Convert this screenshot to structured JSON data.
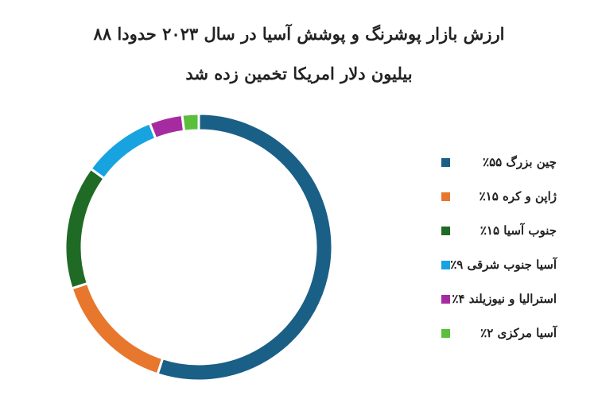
{
  "chart_data": {
    "type": "donut",
    "title": "ارزش بازار پوشرنگ و پوشش  آسیا  در سال ۲۰۲۳ حدودا ۸۸  بیلیون دلار امریکا تخمین زده شد",
    "categories": [
      "چین بزرگ ۵۵٪",
      "ژاپن و کره ۱۵٪",
      "جنوب آسیا ۱۵٪",
      "آسیا جنوب شرقی ۹٪",
      "استرالیا و نیوزیلند ۴٪",
      "آسیا مرکزی ۲٪"
    ],
    "values": [
      55,
      15,
      15,
      9,
      4,
      2
    ],
    "colors": [
      "#1a5f86",
      "#e8772e",
      "#1f6b25",
      "#17a3e0",
      "#a62ba0",
      "#5bbf3b"
    ]
  }
}
